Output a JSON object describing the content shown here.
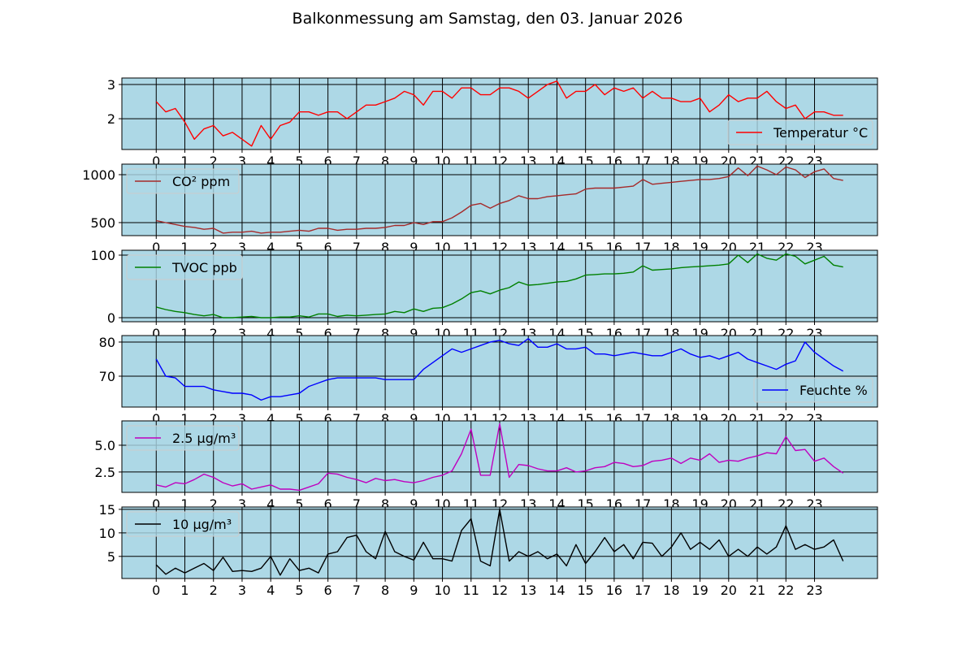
{
  "chart_data": {
    "title": "Balkonmessung am Samstag, den 03. Januar 2026",
    "x_ticks": [
      "0",
      "1",
      "2",
      "3",
      "4",
      "5",
      "6",
      "7",
      "8",
      "9",
      "10",
      "11",
      "12",
      "13",
      "14",
      "15",
      "16",
      "17",
      "18",
      "19",
      "20",
      "21",
      "22",
      "23"
    ],
    "xlim": [
      -1.2,
      25.2
    ],
    "x_range_hours": [
      0,
      24
    ],
    "background": "#add8e6",
    "grid": true,
    "subplots": [
      {
        "type": "line",
        "name": "Temperatur °C",
        "color": "#ff0000",
        "legend": "lower-right",
        "ylim": [
          1.1,
          3.19
        ],
        "y_ticks": [
          2,
          3
        ],
        "y_tick_labels": [
          "2",
          "3"
        ],
        "values": [
          2.5,
          2.2,
          2.3,
          1.9,
          1.4,
          1.7,
          1.8,
          1.5,
          1.6,
          1.4,
          1.2,
          1.8,
          1.4,
          1.8,
          1.9,
          2.2,
          2.2,
          2.1,
          2.2,
          2.2,
          2.0,
          2.2,
          2.4,
          2.4,
          2.5,
          2.6,
          2.8,
          2.7,
          2.4,
          2.8,
          2.8,
          2.6,
          2.9,
          2.9,
          2.7,
          2.7,
          2.9,
          2.9,
          2.8,
          2.6,
          2.8,
          3.0,
          3.1,
          2.6,
          2.8,
          2.8,
          3.0,
          2.7,
          2.9,
          2.8,
          2.9,
          2.6,
          2.8,
          2.6,
          2.6,
          2.5,
          2.5,
          2.6,
          2.2,
          2.4,
          2.7,
          2.5,
          2.6,
          2.6,
          2.8,
          2.5,
          2.3,
          2.4,
          2.0,
          2.2,
          2.2,
          2.1,
          2.1
        ]
      },
      {
        "type": "line",
        "name": "CO² ppm",
        "color": "#a52a2a",
        "legend": "upper-left",
        "ylim": [
          364,
          1110
        ],
        "y_ticks": [
          500,
          1000
        ],
        "y_tick_labels": [
          "500",
          "1000"
        ],
        "values": [
          520,
          500,
          480,
          460,
          450,
          430,
          440,
          390,
          400,
          400,
          410,
          390,
          400,
          400,
          410,
          420,
          410,
          440,
          440,
          420,
          430,
          430,
          440,
          440,
          450,
          470,
          470,
          500,
          480,
          510,
          510,
          550,
          610,
          680,
          700,
          650,
          700,
          730,
          780,
          750,
          750,
          770,
          780,
          790,
          800,
          850,
          860,
          860,
          860,
          870,
          880,
          950,
          900,
          910,
          920,
          930,
          940,
          950,
          950,
          960,
          980,
          1070,
          990,
          1090,
          1050,
          1000,
          1080,
          1050,
          970,
          1030,
          1060,
          960,
          940
        ]
      },
      {
        "type": "line",
        "name": "TVOC ppb",
        "color": "#008000",
        "legend": "upper-left",
        "ylim": [
          -6.5,
          107.8
        ],
        "y_ticks": [
          0,
          100
        ],
        "y_tick_labels": [
          "0",
          "100"
        ],
        "values": [
          17,
          13,
          10,
          8,
          5,
          3,
          5,
          0,
          0,
          1,
          2,
          0,
          0,
          1,
          1,
          3,
          1,
          6,
          6,
          2,
          4,
          3,
          4,
          5,
          6,
          10,
          8,
          14,
          10,
          15,
          16,
          22,
          30,
          40,
          43,
          38,
          44,
          48,
          57,
          52,
          53,
          55,
          57,
          58,
          62,
          68,
          69,
          70,
          70,
          71,
          73,
          83,
          76,
          77,
          78,
          80,
          81,
          82,
          83,
          84,
          86,
          100,
          88,
          102,
          95,
          92,
          102,
          98,
          86,
          92,
          98,
          84,
          81
        ]
      },
      {
        "type": "line",
        "name": "Feuchte %",
        "color": "#0000ff",
        "legend": "lower-right",
        "ylim": [
          60.95,
          81.9
        ],
        "y_ticks": [
          70,
          80
        ],
        "y_tick_labels": [
          "70",
          "80"
        ],
        "values": [
          75,
          70,
          69.5,
          67,
          67,
          67,
          66,
          65.5,
          65,
          65,
          64.5,
          63,
          64,
          64,
          64.5,
          65,
          67,
          68,
          69,
          69.5,
          69.5,
          69.5,
          69.5,
          69.5,
          69,
          69,
          69,
          69,
          72,
          74,
          76,
          78,
          77,
          78,
          79,
          80,
          80.5,
          79.5,
          79,
          81,
          78.5,
          78.5,
          79.5,
          78,
          78,
          78.5,
          76.5,
          76.5,
          76,
          76.5,
          77,
          76.5,
          76,
          76,
          77,
          78,
          76.5,
          75.5,
          76,
          75,
          76,
          77,
          75,
          74,
          73,
          72,
          73.5,
          74.5,
          80,
          77,
          75,
          73,
          71.5
        ]
      },
      {
        "type": "line",
        "name": "2.5 µg/m³",
        "color": "#bf00bf",
        "legend": "upper-left",
        "ylim": [
          0.6,
          7.27
        ],
        "y_ticks": [
          2.5,
          5.0
        ],
        "y_tick_labels": [
          "2.5",
          "5.0"
        ],
        "values": [
          1.3,
          1.1,
          1.5,
          1.4,
          1.8,
          2.3,
          2.0,
          1.5,
          1.2,
          1.4,
          0.9,
          1.1,
          1.3,
          0.9,
          0.9,
          0.8,
          1.1,
          1.4,
          2.4,
          2.3,
          2.0,
          1.8,
          1.5,
          1.9,
          1.7,
          1.8,
          1.6,
          1.5,
          1.7,
          2.0,
          2.2,
          2.6,
          4.2,
          6.5,
          2.2,
          2.2,
          7.0,
          2.0,
          3.2,
          3.1,
          2.8,
          2.6,
          2.6,
          2.9,
          2.5,
          2.6,
          2.9,
          3.0,
          3.4,
          3.3,
          3.0,
          3.1,
          3.5,
          3.6,
          3.8,
          3.3,
          3.8,
          3.6,
          4.2,
          3.4,
          3.6,
          3.5,
          3.8,
          4.0,
          4.3,
          4.2,
          5.8,
          4.5,
          4.6,
          3.5,
          3.8,
          3.0,
          2.4
        ]
      },
      {
        "type": "line",
        "name": "10 µg/m³",
        "color": "#000000",
        "legend": "upper-left",
        "ylim": [
          0.3,
          15.5
        ],
        "y_ticks": [
          5,
          10,
          15
        ],
        "y_tick_labels": [
          "5",
          "10",
          "15"
        ],
        "values": [
          3.2,
          1.2,
          2.5,
          1.5,
          2.5,
          3.5,
          2.0,
          4.8,
          1.8,
          2.0,
          1.8,
          2.5,
          5.0,
          1.0,
          4.5,
          2.0,
          2.5,
          1.5,
          5.5,
          6.0,
          9.0,
          9.5,
          6.0,
          4.5,
          10.3,
          6.0,
          5.0,
          4.2,
          8.0,
          4.5,
          4.5,
          4.0,
          10.5,
          13.0,
          4.0,
          3.0,
          15.0,
          4.0,
          6.0,
          5.0,
          6.0,
          4.5,
          5.5,
          3.0,
          7.5,
          3.5,
          6.0,
          9.0,
          6.0,
          7.5,
          4.5,
          8.0,
          7.8,
          5.0,
          7.0,
          10.0,
          6.5,
          8.0,
          6.5,
          8.5,
          5.0,
          6.5,
          5.0,
          7.0,
          5.5,
          7.0,
          11.5,
          6.5,
          7.5,
          6.5,
          7.0,
          8.5,
          4.0
        ]
      }
    ]
  }
}
